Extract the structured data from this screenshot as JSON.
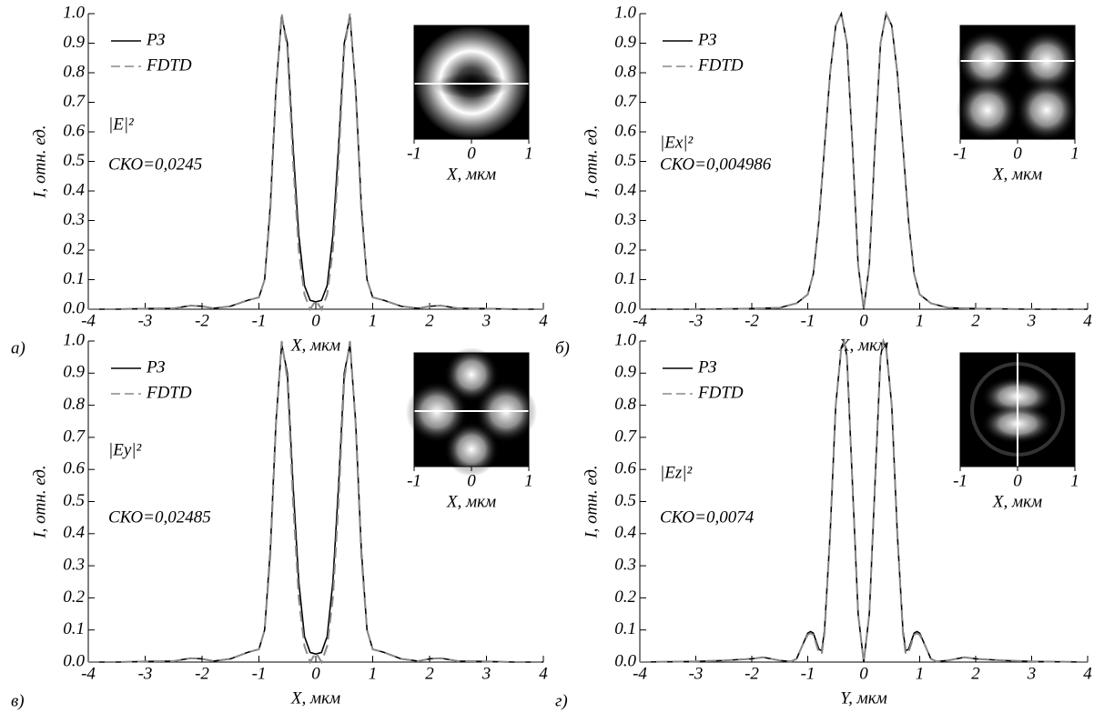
{
  "chart_data": [
    {
      "type": "line",
      "panel_label": "а)",
      "annotation": "|E|²",
      "error_text": "СКО=0,0245",
      "xlabel": "X, мкм",
      "ylabel": "I, отн. ед.",
      "x": [
        -4,
        -3.5,
        -3,
        -2.5,
        -2.2,
        -2,
        -1.8,
        -1.5,
        -1.2,
        -1,
        -0.9,
        -0.8,
        -0.7,
        -0.6,
        -0.5,
        -0.4,
        -0.3,
        -0.2,
        -0.1,
        0,
        0.1,
        0.2,
        0.3,
        0.4,
        0.5,
        0.6,
        0.7,
        0.8,
        0.9,
        1,
        1.2,
        1.5,
        1.8,
        2,
        2.2,
        2.5,
        3,
        3.5,
        4
      ],
      "series": [
        {
          "name": "РЗ",
          "color": "#000000",
          "dashed": false,
          "values": [
            0,
            0,
            0.002,
            0.003,
            0.012,
            0.01,
            0.003,
            0.01,
            0.03,
            0.04,
            0.1,
            0.35,
            0.75,
            0.99,
            0.9,
            0.55,
            0.25,
            0.08,
            0.03,
            0.025,
            0.03,
            0.08,
            0.25,
            0.55,
            0.9,
            0.99,
            0.75,
            0.35,
            0.1,
            0.04,
            0.03,
            0.01,
            0.003,
            0.01,
            0.012,
            0.003,
            0.002,
            0,
            0
          ]
        },
        {
          "name": "FDTD",
          "color": "#888888",
          "dashed": true,
          "values": [
            0,
            0,
            0.002,
            0.003,
            0.012,
            0.01,
            0.003,
            0.01,
            0.03,
            0.04,
            0.1,
            0.33,
            0.74,
            1.0,
            0.88,
            0.5,
            0.2,
            0.05,
            0.0,
            0.03,
            0.0,
            0.05,
            0.2,
            0.5,
            0.88,
            1.0,
            0.74,
            0.33,
            0.1,
            0.04,
            0.03,
            0.01,
            0.003,
            0.01,
            0.012,
            0.003,
            0.002,
            0,
            0
          ]
        }
      ],
      "xlim": [
        -4,
        4
      ],
      "ylim": [
        0,
        1
      ],
      "xticks": [
        -4,
        -3,
        -2,
        -1,
        0,
        1,
        2,
        3,
        4
      ],
      "yticks": [
        {
          "value": 0,
          "label": "0.0"
        },
        0.1,
        0.2,
        0.3,
        0.4,
        0.5,
        0.6,
        0.7,
        0.8,
        0.9,
        {
          "value": 1,
          "label": "1.0"
        }
      ],
      "inset": {
        "xlim": [
          -1,
          1
        ],
        "xticks": [
          -1,
          0,
          1
        ],
        "xlabel": "X, мкм"
      }
    },
    {
      "type": "line",
      "panel_label": "б)",
      "annotation": "|Ex|²",
      "error_text": "СКО=0,004986",
      "xlabel": "X, мкм",
      "ylabel": "I, отн. ед.",
      "x": [
        -4,
        -3,
        -2,
        -1.5,
        -1.2,
        -1,
        -0.9,
        -0.8,
        -0.7,
        -0.6,
        -0.5,
        -0.4,
        -0.3,
        -0.2,
        -0.1,
        0,
        0.1,
        0.2,
        0.3,
        0.4,
        0.5,
        0.6,
        0.7,
        0.8,
        0.9,
        1,
        1.2,
        1.5,
        2,
        3,
        4
      ],
      "series": [
        {
          "name": "РЗ",
          "color": "#000000",
          "dashed": false,
          "values": [
            0,
            0,
            0.002,
            0.005,
            0.02,
            0.05,
            0.12,
            0.3,
            0.55,
            0.8,
            0.96,
            1.0,
            0.9,
            0.55,
            0.15,
            0,
            0.15,
            0.55,
            0.9,
            1.0,
            0.96,
            0.8,
            0.55,
            0.3,
            0.12,
            0.05,
            0.02,
            0.005,
            0.002,
            0,
            0
          ]
        },
        {
          "name": "FDTD",
          "color": "#888888",
          "dashed": true,
          "values": [
            0,
            0,
            0.002,
            0.005,
            0.02,
            0.05,
            0.12,
            0.3,
            0.55,
            0.8,
            0.96,
            1.0,
            0.9,
            0.55,
            0.15,
            0,
            0.15,
            0.55,
            0.9,
            1.0,
            0.96,
            0.8,
            0.55,
            0.3,
            0.12,
            0.05,
            0.02,
            0.005,
            0.002,
            0,
            0
          ]
        }
      ],
      "xlim": [
        -4,
        4
      ],
      "ylim": [
        0,
        1
      ],
      "xticks": [
        -4,
        -3,
        -2,
        -1,
        0,
        1,
        2,
        3,
        4
      ],
      "yticks": [
        {
          "value": 0,
          "label": "0.0"
        },
        0.1,
        0.2,
        0.3,
        0.4,
        0.5,
        0.6,
        0.7,
        0.8,
        0.9,
        {
          "value": 1,
          "label": "1.0"
        }
      ],
      "inset": {
        "xlim": [
          -1,
          1
        ],
        "xticks": [
          -1,
          0,
          1
        ],
        "xlabel": "X, мкм"
      }
    },
    {
      "type": "line",
      "panel_label": "в)",
      "annotation": "|Ey|²",
      "error_text": "СКО=0,02485",
      "xlabel": "X, мкм",
      "ylabel": "I, отн. ед.",
      "x": [
        -4,
        -3.5,
        -3,
        -2.5,
        -2.2,
        -2,
        -1.8,
        -1.5,
        -1.2,
        -1,
        -0.9,
        -0.8,
        -0.7,
        -0.6,
        -0.5,
        -0.4,
        -0.3,
        -0.2,
        -0.1,
        0,
        0.1,
        0.2,
        0.3,
        0.4,
        0.5,
        0.6,
        0.7,
        0.8,
        0.9,
        1,
        1.2,
        1.5,
        1.8,
        2,
        2.2,
        2.5,
        3,
        3.5,
        4
      ],
      "series": [
        {
          "name": "РЗ",
          "color": "#000000",
          "dashed": false,
          "values": [
            0,
            0,
            0.002,
            0.003,
            0.012,
            0.01,
            0.003,
            0.01,
            0.03,
            0.04,
            0.1,
            0.35,
            0.75,
            0.99,
            0.9,
            0.55,
            0.25,
            0.08,
            0.03,
            0.025,
            0.03,
            0.08,
            0.25,
            0.55,
            0.9,
            0.99,
            0.75,
            0.35,
            0.1,
            0.04,
            0.03,
            0.01,
            0.003,
            0.01,
            0.012,
            0.003,
            0.002,
            0,
            0
          ]
        },
        {
          "name": "FDTD",
          "color": "#888888",
          "dashed": true,
          "values": [
            0,
            0,
            0.002,
            0.003,
            0.012,
            0.01,
            0.003,
            0.01,
            0.03,
            0.04,
            0.1,
            0.33,
            0.74,
            1.0,
            0.88,
            0.5,
            0.2,
            0.05,
            0.0,
            0.03,
            0.0,
            0.05,
            0.2,
            0.5,
            0.88,
            1.0,
            0.74,
            0.33,
            0.1,
            0.04,
            0.03,
            0.01,
            0.003,
            0.01,
            0.012,
            0.003,
            0.002,
            0,
            0
          ]
        }
      ],
      "xlim": [
        -4,
        4
      ],
      "ylim": [
        0,
        1
      ],
      "xticks": [
        -4,
        -3,
        -2,
        -1,
        0,
        1,
        2,
        3,
        4
      ],
      "yticks": [
        {
          "value": 0,
          "label": "0.0"
        },
        0.1,
        0.2,
        0.3,
        0.4,
        0.5,
        0.6,
        0.7,
        0.8,
        0.9,
        {
          "value": 1,
          "label": "1.0"
        }
      ],
      "inset": {
        "xlim": [
          -1,
          1
        ],
        "xticks": [
          -1,
          0,
          1
        ],
        "xlabel": "X, мкм"
      }
    },
    {
      "type": "line",
      "panel_label": "г)",
      "annotation": "|Ez|²",
      "error_text": "СКО=0,0074",
      "xlabel": "Y, мкм",
      "ylabel": "I, отн. ед.",
      "x": [
        -4,
        -3,
        -2.5,
        -2,
        -1.8,
        -1.5,
        -1.3,
        -1.2,
        -1.1,
        -1,
        -0.95,
        -0.9,
        -0.8,
        -0.75,
        -0.7,
        -0.6,
        -0.5,
        -0.4,
        -0.35,
        -0.3,
        -0.2,
        -0.1,
        0,
        0.1,
        0.2,
        0.3,
        0.35,
        0.4,
        0.5,
        0.6,
        0.7,
        0.75,
        0.8,
        0.9,
        0.95,
        1,
        1.1,
        1.2,
        1.3,
        1.5,
        1.8,
        2,
        2.5,
        3,
        4
      ],
      "series": [
        {
          "name": "РЗ",
          "color": "#000000",
          "dashed": false,
          "values": [
            0,
            0.002,
            0.005,
            0.01,
            0.015,
            0.005,
            0.002,
            0.01,
            0.05,
            0.09,
            0.095,
            0.09,
            0.04,
            0.035,
            0.1,
            0.4,
            0.8,
            0.98,
            1.0,
            0.95,
            0.55,
            0.15,
            0,
            0.15,
            0.55,
            0.95,
            1.0,
            0.98,
            0.8,
            0.4,
            0.1,
            0.035,
            0.04,
            0.09,
            0.095,
            0.09,
            0.05,
            0.01,
            0.002,
            0.005,
            0.015,
            0.01,
            0.005,
            0.002,
            0
          ]
        },
        {
          "name": "FDTD",
          "color": "#888888",
          "dashed": true,
          "values": [
            0,
            0.002,
            0.005,
            0.01,
            0.015,
            0.005,
            0.002,
            0.01,
            0.05,
            0.085,
            0.09,
            0.085,
            0.03,
            0.025,
            0.09,
            0.4,
            0.8,
            0.98,
            1.0,
            0.95,
            0.55,
            0.15,
            0,
            0.15,
            0.55,
            0.95,
            1.0,
            0.98,
            0.8,
            0.4,
            0.09,
            0.025,
            0.03,
            0.085,
            0.09,
            0.085,
            0.05,
            0.01,
            0.002,
            0.005,
            0.015,
            0.01,
            0.005,
            0.002,
            0
          ]
        }
      ],
      "xlim": [
        -4,
        4
      ],
      "ylim": [
        0,
        1
      ],
      "xticks": [
        -4,
        -3,
        -2,
        -1,
        0,
        1,
        2,
        3,
        4
      ],
      "yticks": [
        {
          "value": 0,
          "label": "0.0"
        },
        0.1,
        0.2,
        0.3,
        0.4,
        0.5,
        0.6,
        0.7,
        0.8,
        0.9,
        {
          "value": 1,
          "label": "1.0"
        }
      ],
      "inset": {
        "xlim": [
          -1,
          1
        ],
        "xticks": [
          -1,
          0,
          1
        ],
        "xlabel": "X, мкм"
      }
    }
  ]
}
